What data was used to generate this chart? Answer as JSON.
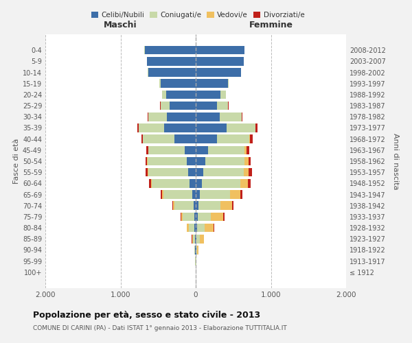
{
  "age_groups": [
    "100+",
    "95-99",
    "90-94",
    "85-89",
    "80-84",
    "75-79",
    "70-74",
    "65-69",
    "60-64",
    "55-59",
    "50-54",
    "45-49",
    "40-44",
    "35-39",
    "30-34",
    "25-29",
    "20-24",
    "15-19",
    "10-14",
    "5-9",
    "0-4"
  ],
  "birth_years": [
    "≤ 1912",
    "1913-1917",
    "1918-1922",
    "1923-1927",
    "1928-1932",
    "1933-1937",
    "1938-1942",
    "1943-1947",
    "1948-1952",
    "1953-1957",
    "1958-1962",
    "1963-1967",
    "1968-1972",
    "1973-1977",
    "1978-1982",
    "1983-1987",
    "1988-1992",
    "1993-1997",
    "1998-2002",
    "2003-2007",
    "2008-2012"
  ],
  "maschi": {
    "celibi": [
      2,
      2,
      5,
      10,
      15,
      20,
      30,
      50,
      80,
      100,
      120,
      150,
      280,
      420,
      380,
      350,
      390,
      470,
      630,
      650,
      680
    ],
    "coniugati": [
      1,
      3,
      10,
      30,
      80,
      150,
      250,
      380,
      500,
      530,
      520,
      480,
      420,
      340,
      250,
      120,
      60,
      10,
      5,
      2,
      2
    ],
    "vedovi": [
      0,
      1,
      3,
      10,
      20,
      25,
      20,
      15,
      10,
      5,
      5,
      3,
      2,
      1,
      1,
      0,
      1,
      0,
      0,
      0,
      0
    ],
    "divorziati": [
      0,
      0,
      0,
      1,
      5,
      10,
      15,
      20,
      30,
      30,
      25,
      20,
      20,
      15,
      5,
      3,
      0,
      0,
      0,
      0,
      0
    ]
  },
  "femmine": {
    "nubili": [
      2,
      3,
      5,
      12,
      18,
      25,
      35,
      55,
      85,
      105,
      130,
      160,
      280,
      410,
      320,
      280,
      330,
      430,
      600,
      640,
      650
    ],
    "coniugate": [
      1,
      4,
      12,
      40,
      100,
      180,
      290,
      400,
      510,
      530,
      520,
      490,
      430,
      380,
      290,
      150,
      70,
      10,
      5,
      2,
      2
    ],
    "vedove": [
      1,
      5,
      20,
      60,
      120,
      160,
      160,
      140,
      100,
      70,
      50,
      30,
      15,
      8,
      4,
      2,
      1,
      0,
      0,
      0,
      0
    ],
    "divorziate": [
      0,
      0,
      1,
      2,
      8,
      15,
      20,
      30,
      40,
      40,
      35,
      30,
      30,
      20,
      8,
      3,
      1,
      0,
      0,
      0,
      0
    ]
  },
  "colors": {
    "celibi_nubili": "#3d6ea8",
    "coniugati_e": "#c8d9a8",
    "vedovi_e": "#f0c060",
    "divorziati_e": "#c0201a"
  },
  "xlim": [
    -2000,
    2000
  ],
  "xticks": [
    -2000,
    -1000,
    0,
    1000,
    2000
  ],
  "xticklabels": [
    "2.000",
    "1.000",
    "0",
    "1.000",
    "2.000"
  ],
  "title_main": "Popolazione per età, sesso e stato civile - 2013",
  "title_sub": "COMUNE DI CARINI (PA) - Dati ISTAT 1° gennaio 2013 - Elaborazione TUTTITALIA.IT",
  "ylabel_left": "Fasce di età",
  "ylabel_right": "Anni di nascita",
  "label_maschi": "Maschi",
  "label_femmine": "Femmine",
  "legend_labels": [
    "Celibi/Nubili",
    "Coniugati/e",
    "Vedovi/e",
    "Divorziati/e"
  ],
  "bg_color": "#f2f2f2",
  "plot_bg": "#ffffff"
}
